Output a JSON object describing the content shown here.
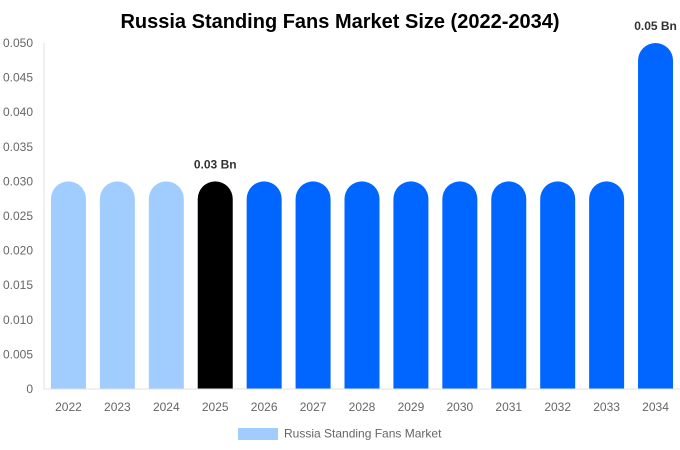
{
  "chart_data": {
    "type": "bar",
    "title": "Russia Standing Fans Market Size (2022-2034)",
    "categories": [
      "2022",
      "2023",
      "2024",
      "2025",
      "2026",
      "2027",
      "2028",
      "2029",
      "2030",
      "2031",
      "2032",
      "2033",
      "2034"
    ],
    "series": [
      {
        "name": "Russia Standing Fans Market",
        "values": [
          0.03,
          0.03,
          0.03,
          0.03,
          0.03,
          0.03,
          0.03,
          0.03,
          0.03,
          0.03,
          0.03,
          0.03,
          0.05
        ]
      }
    ],
    "bar_colors": [
      "#a0cdfd",
      "#a0cdfd",
      "#a0cdfd",
      "#000000",
      "#0066ff",
      "#0066ff",
      "#0066ff",
      "#0066ff",
      "#0066ff",
      "#0066ff",
      "#0066ff",
      "#0066ff",
      "#0066ff"
    ],
    "data_labels": {
      "3": "0.03 Bn",
      "12": "0.05 Bn"
    },
    "yticks": [
      "0",
      "0.005",
      "0.010",
      "0.015",
      "0.020",
      "0.025",
      "0.030",
      "0.035",
      "0.040",
      "0.045",
      "0.050"
    ],
    "ylim": [
      0,
      0.05
    ],
    "xlabel": "",
    "ylabel": "",
    "grid": false,
    "legend_position": "bottom",
    "legend_color": "#a0cdfd"
  }
}
